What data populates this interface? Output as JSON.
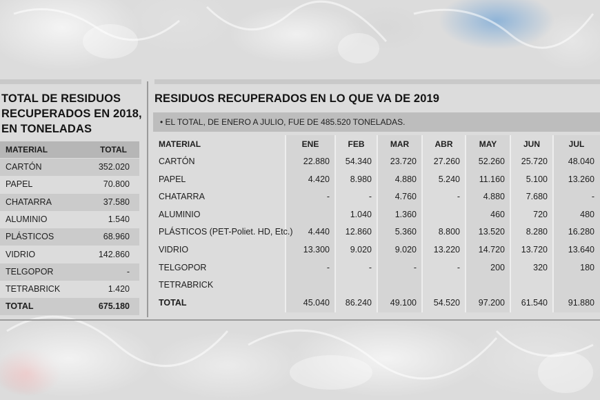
{
  "left": {
    "title": "TOTAL DE RESIDUOS RECUPERADOS EN 2018, EN TONELADAS",
    "headers": {
      "material": "MATERIAL",
      "total": "TOTAL"
    },
    "rows": [
      {
        "material": "CARTÓN",
        "total": "352.020"
      },
      {
        "material": "PAPEL",
        "total": "70.800"
      },
      {
        "material": "CHATARRA",
        "total": "37.580"
      },
      {
        "material": "ALUMINIO",
        "total": "1.540"
      },
      {
        "material": "PLÁSTICOS",
        "total": "68.960"
      },
      {
        "material": "VIDRIO",
        "total": "142.860"
      },
      {
        "material": "TELGOPOR",
        "total": "-"
      },
      {
        "material": "TETRABRICK",
        "total": "1.420"
      }
    ],
    "total_row": {
      "material": "TOTAL",
      "total": "675.180"
    }
  },
  "right": {
    "title": "RESIDUOS RECUPERADOS EN LO QUE VA DE 2019",
    "note": "• EL TOTAL, DE ENERO A JULIO, FUE DE 485.520 TONELADAS.",
    "headers": [
      "MATERIAL",
      "ENE",
      "FEB",
      "MAR",
      "ABR",
      "MAY",
      "JUN",
      "JUL"
    ],
    "rows": [
      [
        "CARTÓN",
        "22.880",
        "54.340",
        "23.720",
        "27.260",
        "52.260",
        "25.720",
        "48.040"
      ],
      [
        "PAPEL",
        "4.420",
        "8.980",
        "4.880",
        "5.240",
        "11.160",
        "5.100",
        "13.260"
      ],
      [
        "CHATARRA",
        "-",
        "-",
        "4.760",
        "-",
        "4.880",
        "7.680",
        "-"
      ],
      [
        "ALUMINIO",
        "",
        "1.040",
        "1.360",
        "",
        "460",
        "720",
        "480"
      ],
      [
        "PLÁSTICOS (PET-Poliet. HD, Etc.)",
        "4.440",
        "12.860",
        "5.360",
        "8.800",
        "13.520",
        "8.280",
        "16.280"
      ],
      [
        "VIDRIO",
        "13.300",
        "9.020",
        "9.020",
        "13.220",
        "14.720",
        "13.720",
        "13.640"
      ],
      [
        "TELGOPOR",
        "-",
        "-",
        "-",
        "-",
        "200",
        "320",
        "180"
      ],
      [
        "TETRABRICK",
        "",
        "",
        "",
        "",
        "",
        "",
        ""
      ],
      [
        "TOTAL",
        "45.040",
        "86.240",
        "49.100",
        "54.520",
        "97.200",
        "61.540",
        "91.880"
      ]
    ]
  }
}
